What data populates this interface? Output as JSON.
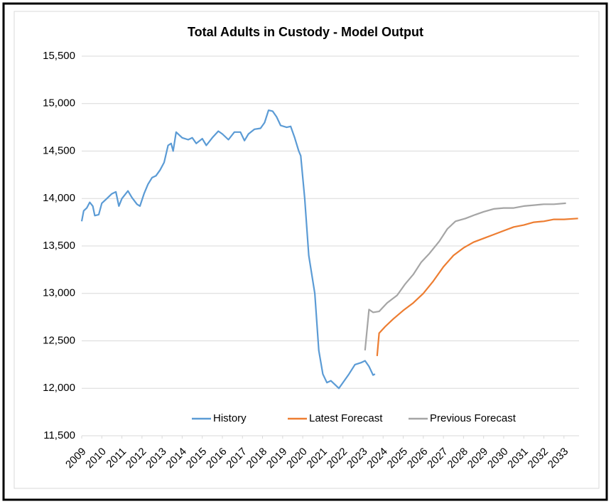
{
  "chart_data": {
    "type": "line",
    "title": "Total Adults in Custody - Model Output",
    "xlim": [
      2009,
      2033.75
    ],
    "xticks": [
      2009,
      2010,
      2011,
      2012,
      2013,
      2014,
      2015,
      2016,
      2017,
      2018,
      2019,
      2020,
      2021,
      2022,
      2023,
      2024,
      2025,
      2026,
      2027,
      2028,
      2029,
      2030,
      2031,
      2032,
      2033
    ],
    "ylim": [
      11500,
      15500
    ],
    "yticks": [
      {
        "value": 11500,
        "label": "11,500"
      },
      {
        "value": 12000,
        "label": "12,000"
      },
      {
        "value": 12500,
        "label": "12,500"
      },
      {
        "value": 13000,
        "label": "13,000"
      },
      {
        "value": 13500,
        "label": "13,500"
      },
      {
        "value": 14000,
        "label": "14,000"
      },
      {
        "value": 14500,
        "label": "14,500"
      },
      {
        "value": 15000,
        "label": "15,000"
      },
      {
        "value": 15500,
        "label": "15,500"
      }
    ],
    "grid": true,
    "legend": "bottom",
    "series": [
      {
        "name": "History",
        "color": "#5b9bd5",
        "x": [
          2009.0,
          2009.1,
          2009.25,
          2009.4,
          2009.55,
          2009.65,
          2009.85,
          2010.0,
          2010.25,
          2010.5,
          2010.7,
          2010.85,
          2011.0,
          2011.3,
          2011.5,
          2011.75,
          2011.9,
          2012.1,
          2012.3,
          2012.5,
          2012.7,
          2012.9,
          2013.1,
          2013.3,
          2013.45,
          2013.55,
          2013.7,
          2014.0,
          2014.3,
          2014.5,
          2014.7,
          2015.0,
          2015.2,
          2015.5,
          2015.8,
          2016.0,
          2016.3,
          2016.6,
          2016.9,
          2017.1,
          2017.3,
          2017.6,
          2017.9,
          2018.1,
          2018.3,
          2018.5,
          2018.7,
          2018.9,
          2019.2,
          2019.4,
          2019.6,
          2019.8,
          2019.9,
          2020.1,
          2020.3,
          2020.6,
          2020.8,
          2021.0,
          2021.2,
          2021.4,
          2021.6,
          2021.8,
          2022.0,
          2022.3,
          2022.6,
          2022.9,
          2023.1,
          2023.3,
          2023.5,
          2023.6
        ],
        "values": [
          13760,
          13870,
          13900,
          13960,
          13920,
          13820,
          13830,
          13950,
          14000,
          14050,
          14070,
          13920,
          14000,
          14080,
          14010,
          13940,
          13920,
          14050,
          14150,
          14220,
          14240,
          14300,
          14380,
          14560,
          14580,
          14500,
          14700,
          14640,
          14620,
          14640,
          14580,
          14630,
          14560,
          14640,
          14710,
          14680,
          14620,
          14700,
          14700,
          14610,
          14680,
          14730,
          14740,
          14800,
          14930,
          14920,
          14860,
          14770,
          14750,
          14760,
          14640,
          14500,
          14450,
          14000,
          13400,
          13000,
          12400,
          12150,
          12060,
          12080,
          12040,
          12000,
          12060,
          12150,
          12250,
          12270,
          12290,
          12230,
          12140,
          12150
        ]
      },
      {
        "name": "Latest Forecast",
        "color": "#ed7d31",
        "x": [
          2023.7,
          2023.8,
          2024.1,
          2024.5,
          2025.0,
          2025.5,
          2026.0,
          2026.5,
          2027.0,
          2027.5,
          2028.0,
          2028.5,
          2029.0,
          2029.5,
          2030.0,
          2030.5,
          2031.0,
          2031.5,
          2032.0,
          2032.5,
          2033.0,
          2033.7
        ],
        "values": [
          12340,
          12580,
          12650,
          12730,
          12820,
          12900,
          13000,
          13130,
          13280,
          13400,
          13480,
          13540,
          13580,
          13620,
          13660,
          13700,
          13720,
          13750,
          13760,
          13780,
          13780,
          13790
        ]
      },
      {
        "name": "Previous Forecast",
        "color": "#a5a5a5",
        "x": [
          2023.1,
          2023.3,
          2023.5,
          2023.8,
          2024.2,
          2024.7,
          2025.1,
          2025.5,
          2025.9,
          2026.3,
          2026.8,
          2027.2,
          2027.6,
          2028.1,
          2028.6,
          2029.0,
          2029.5,
          2030.0,
          2030.5,
          2031.0,
          2031.5,
          2032.0,
          2032.5,
          2033.1
        ],
        "values": [
          12400,
          12830,
          12800,
          12810,
          12900,
          12980,
          13100,
          13200,
          13330,
          13420,
          13550,
          13680,
          13760,
          13790,
          13830,
          13860,
          13890,
          13900,
          13900,
          13920,
          13930,
          13940,
          13940,
          13950
        ]
      }
    ]
  }
}
